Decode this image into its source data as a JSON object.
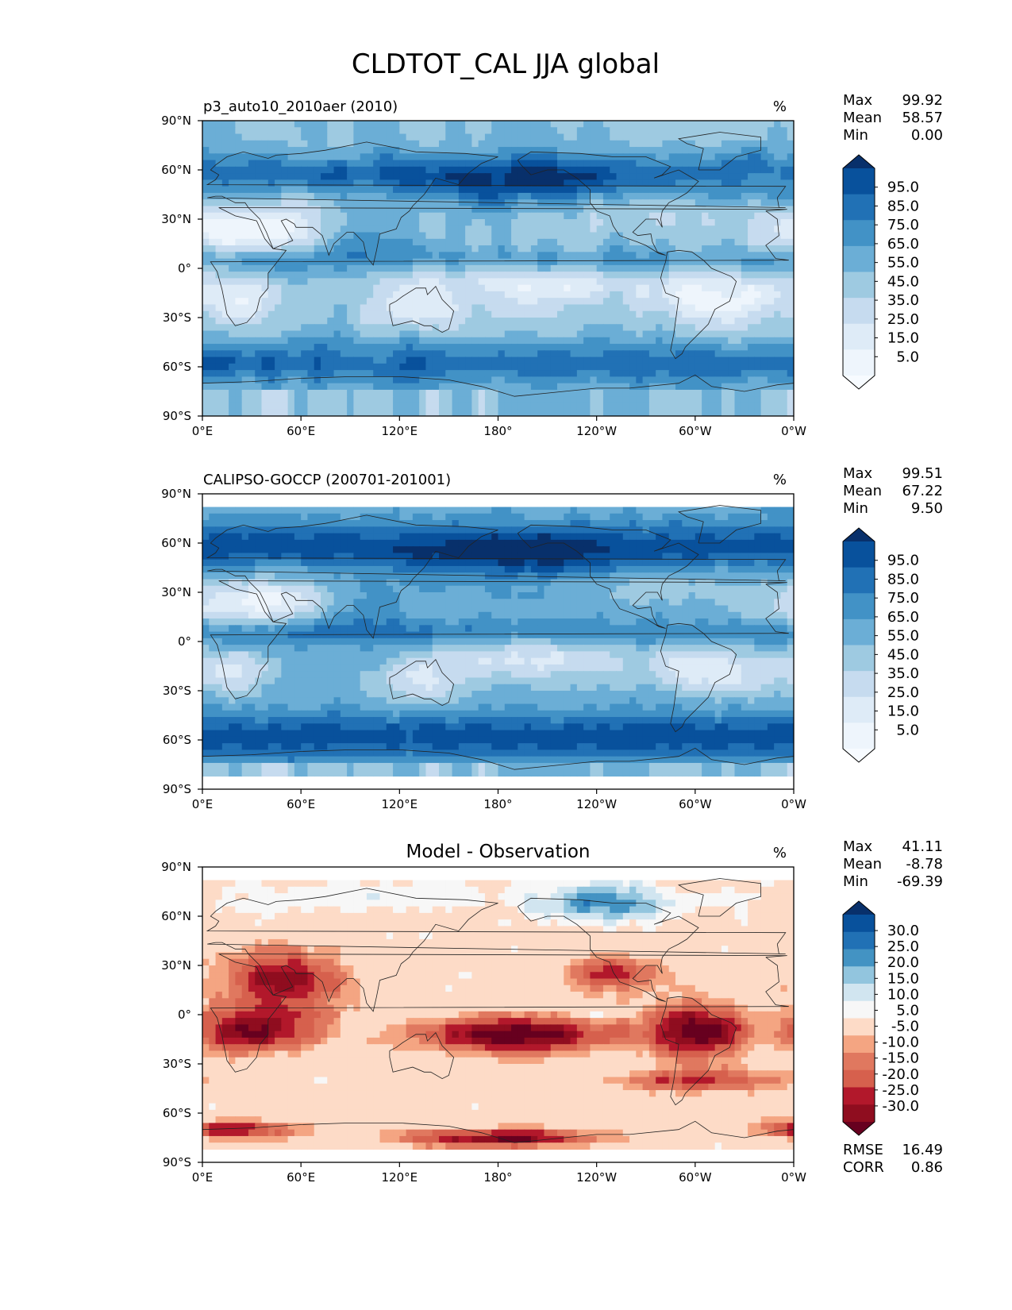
{
  "figure_title": "CLDTOT_CAL JJA global",
  "chart_data": [
    {
      "type": "heatmap",
      "subtype": "global-map",
      "title": "p3_auto10_2010aer (2010)",
      "units": "%",
      "xticks": [
        "0°E",
        "60°E",
        "120°E",
        "180°",
        "120°W",
        "60°W",
        "0°W"
      ],
      "yticks": [
        "90°N",
        "60°N",
        "30°N",
        "0°",
        "30°S",
        "60°S",
        "90°S"
      ],
      "xlim": [
        0,
        360
      ],
      "ylim": [
        -90,
        90
      ],
      "data_lat_range": [
        -90,
        90
      ],
      "stats": [
        {
          "label": "Max",
          "value": "99.92"
        },
        {
          "label": "Mean",
          "value": "58.57"
        },
        {
          "label": "Min",
          "value": "0.00"
        }
      ],
      "colorbar": {
        "extend": "both",
        "tick_labels": [
          "95.0",
          "85.0",
          "75.0",
          "65.0",
          "55.0",
          "45.0",
          "35.0",
          "25.0",
          "15.0",
          "5.0"
        ],
        "colors": [
          "#08306b",
          "#08519c",
          "#2171b5",
          "#4292c6",
          "#6baed6",
          "#9ecae1",
          "#c6dbef",
          "#deebf7",
          "#eef5fc",
          "#f7fbff"
        ]
      }
    },
    {
      "type": "heatmap",
      "subtype": "global-map",
      "title": "CALIPSO-GOCCP (200701-201001)",
      "units": "%",
      "xticks": [
        "0°E",
        "60°E",
        "120°E",
        "180°",
        "120°W",
        "60°W",
        "0°W"
      ],
      "yticks": [
        "90°N",
        "60°N",
        "30°N",
        "0°",
        "30°S",
        "60°S",
        "90°S"
      ],
      "xlim": [
        0,
        360
      ],
      "ylim": [
        -90,
        90
      ],
      "data_lat_range": [
        -82,
        82
      ],
      "stats": [
        {
          "label": "Max",
          "value": "99.51"
        },
        {
          "label": "Mean",
          "value": "67.22"
        },
        {
          "label": "Min",
          "value": "9.50"
        }
      ],
      "colorbar": {
        "extend": "both",
        "tick_labels": [
          "95.0",
          "85.0",
          "75.0",
          "65.0",
          "55.0",
          "45.0",
          "35.0",
          "25.0",
          "15.0",
          "5.0"
        ],
        "colors": [
          "#08306b",
          "#08519c",
          "#2171b5",
          "#4292c6",
          "#6baed6",
          "#9ecae1",
          "#c6dbef",
          "#deebf7",
          "#eef5fc",
          "#f7fbff"
        ]
      }
    },
    {
      "type": "heatmap",
      "subtype": "global-map",
      "title": "Model - Observation",
      "units": "%",
      "xticks": [
        "0°E",
        "60°E",
        "120°E",
        "180°",
        "120°W",
        "60°W",
        "0°W"
      ],
      "yticks": [
        "90°N",
        "60°N",
        "30°N",
        "0°",
        "30°S",
        "60°S",
        "90°S"
      ],
      "xlim": [
        0,
        360
      ],
      "ylim": [
        -90,
        90
      ],
      "data_lat_range": [
        -82,
        82
      ],
      "stats": [
        {
          "label": "Max",
          "value": "41.11"
        },
        {
          "label": "Mean",
          "value": "-8.78"
        },
        {
          "label": "Min",
          "value": "-69.39"
        }
      ],
      "metrics": [
        {
          "label": "RMSE",
          "value": "16.49"
        },
        {
          "label": "CORR",
          "value": "0.86"
        }
      ],
      "colorbar": {
        "extend": "both",
        "tick_labels": [
          "30.0",
          "25.0",
          "20.0",
          "15.0",
          "10.0",
          "5.0",
          "-5.0",
          "-10.0",
          "-15.0",
          "-20.0",
          "-25.0",
          "-30.0"
        ],
        "colors": [
          "#08306b",
          "#08519c",
          "#2171b5",
          "#4393c3",
          "#92c5de",
          "#d1e5f0",
          "#f7f7f7",
          "#fddbc7",
          "#f4a582",
          "#e0785f",
          "#d6604d",
          "#b2182b",
          "#8f0d1f",
          "#67001f"
        ]
      }
    }
  ]
}
